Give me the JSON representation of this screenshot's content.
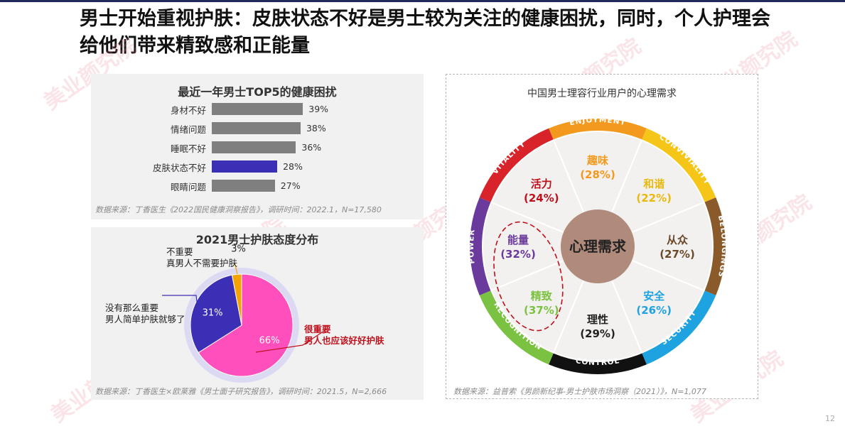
{
  "title": "男士开始重视护肤：皮肤状态不好是男士较为关注的健康困扰，同时，个人护理会给他们带来精致感和正能量",
  "page_number": "12",
  "watermark": "美业颜究院",
  "health_panel": {
    "title": "最近一年男士TOP5的健康困扰",
    "source": "数据来源：丁香医生《2022国民健康洞察报告》，调研时间：2022.1，N=17,580"
  },
  "attitude_panel": {
    "title": "2021男士护肤态度分布",
    "source": "数据来源：丁香医生×欧莱雅《男士面子研究报告》，调研时间：2021.5，N=2,666",
    "labels": {
      "not_important_1": "不重要",
      "not_important_2": "真男人不需要护肤",
      "not_so_important_1": "没有那么重要",
      "not_so_important_2": "男人简单护肤就够了",
      "very_important_1": "很重要",
      "very_important_2": "男人也应该好好护肤"
    }
  },
  "wheel_panel": {
    "title": "中国男士理容行业用户的心理需求",
    "source": "数据来源：益普索《男颜新纪事-男士护肤市场洞察（2021）》，N=1,077",
    "center": "心理需求",
    "ring_labels": [
      "ENJOYMENT",
      "CONVIVIALITY",
      "BELONGINGS",
      "SECURITY",
      "CONTROL",
      "RECOGNITION",
      "POWER",
      "VITALITY"
    ],
    "ring_colors": [
      "#f39a1e",
      "#f5c517",
      "#8a5a2b",
      "#1ea3e0",
      "#111111",
      "#7cc242",
      "#6a3a9c",
      "#d8232a"
    ],
    "needs": [
      {
        "name": "趣味",
        "value": "(28%)",
        "color": "#f39a1e"
      },
      {
        "name": "和谐",
        "value": "(22%)",
        "color": "#e8b90f"
      },
      {
        "name": "从众",
        "value": "(27%)",
        "color": "#6b4a2a"
      },
      {
        "name": "安全",
        "value": "(26%)",
        "color": "#1ea3e0"
      },
      {
        "name": "理性",
        "value": "(29%)",
        "color": "#222222"
      },
      {
        "name": "精致",
        "value": "(37%)",
        "color": "#7cc242"
      },
      {
        "name": "能量",
        "value": "(32%)",
        "color": "#6a3a9c"
      },
      {
        "name": "活力",
        "value": "(24%)",
        "color": "#c0101d"
      }
    ]
  },
  "chart_data": [
    {
      "type": "bar",
      "title": "最近一年男士TOP5的健康困扰",
      "categories": [
        "身材不好",
        "情绪问题",
        "睡眠不好",
        "皮肤状态不好",
        "眼睛问题"
      ],
      "values": [
        39,
        38,
        36,
        28,
        27
      ],
      "value_labels": [
        "39%",
        "38%",
        "36%",
        "28%",
        "27%"
      ],
      "colors": [
        "#7f7f7f",
        "#7f7f7f",
        "#7f7f7f",
        "#3a2fb5",
        "#7f7f7f"
      ],
      "xlim": [
        0,
        45
      ],
      "grid": false
    },
    {
      "type": "pie",
      "title": "2021男士护肤态度分布",
      "categories": [
        "很重要",
        "没有那么重要",
        "不重要"
      ],
      "values": [
        66,
        31,
        3
      ],
      "value_labels": [
        "66%",
        "31%",
        "3%"
      ],
      "colors": [
        "#ff4fbd",
        "#3a2fb5",
        "#f5a300"
      ]
    }
  ]
}
